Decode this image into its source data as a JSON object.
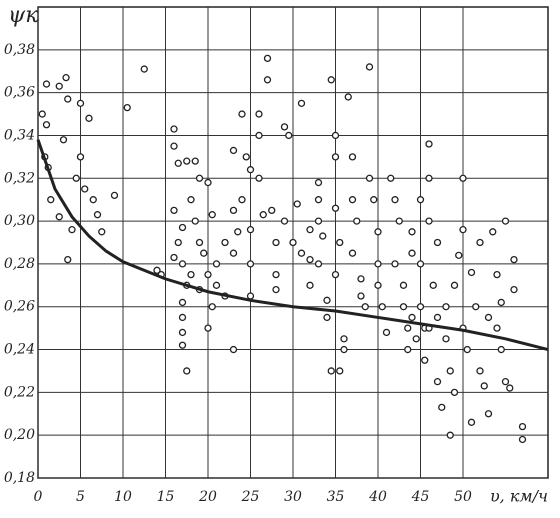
{
  "chart_data": {
    "type": "scatter",
    "x_label": "υ, км/ч",
    "y_label": "ψк",
    "xlim": [
      0,
      60
    ],
    "ylim": [
      0.18,
      0.4
    ],
    "xticks": [
      0,
      5,
      10,
      15,
      20,
      25,
      30,
      35,
      40,
      45,
      50
    ],
    "yticks": [
      {
        "value": 0.18,
        "label": "0,18"
      },
      {
        "value": 0.2,
        "label": "0,20"
      },
      {
        "value": 0.22,
        "label": "0,22"
      },
      {
        "value": 0.24,
        "label": "0,24"
      },
      {
        "value": 0.26,
        "label": "0,26"
      },
      {
        "value": 0.28,
        "label": "0,28"
      },
      {
        "value": 0.3,
        "label": "0,30"
      },
      {
        "value": 0.32,
        "label": "0,32"
      },
      {
        "value": 0.34,
        "label": "0,34"
      },
      {
        "value": 0.36,
        "label": "0,36"
      },
      {
        "value": 0.38,
        "label": "0,38"
      }
    ],
    "grid": true,
    "series": [
      {
        "type": "scatter",
        "color": "#222",
        "x": [
          0.5,
          1,
          0.8,
          1.2,
          1,
          2.5,
          3.3,
          3.5,
          3,
          1.5,
          2.5,
          3.5,
          4,
          4.5,
          5,
          5,
          6,
          5.5,
          6.5,
          7,
          7.5,
          9,
          10.5,
          12.5,
          14,
          14.5,
          16,
          16,
          16.5,
          17.5,
          16,
          16.5,
          16,
          17,
          17,
          17.5,
          17,
          17,
          17,
          17,
          17.5,
          18,
          18.5,
          19,
          18.5,
          19,
          19.5,
          18,
          19,
          20,
          20,
          20.5,
          21,
          21,
          20.5,
          20,
          22,
          22,
          23,
          23,
          23.5,
          23,
          23,
          24,
          24.5,
          24,
          25,
          25,
          25,
          25,
          26,
          26,
          26,
          26.5,
          27,
          27,
          27.5,
          28,
          28,
          28,
          29,
          29.5,
          29,
          30,
          30.5,
          31,
          31,
          32,
          32,
          32,
          33,
          33,
          33,
          33.5,
          33,
          34,
          34,
          34.5,
          35,
          35,
          35,
          35.5,
          35,
          34.5,
          35.5,
          36,
          36,
          36.5,
          37,
          37,
          37.5,
          37,
          38,
          38,
          38.5,
          39,
          39,
          39.5,
          40,
          40,
          40,
          40.5,
          41,
          41.5,
          42,
          42.5,
          42,
          43,
          43,
          43.5,
          43.5,
          44,
          44,
          44.5,
          45,
          45,
          45,
          45.5,
          45.5,
          46,
          46,
          46,
          46.5,
          47,
          47,
          47,
          47.5,
          48,
          48,
          48.5,
          48.5,
          49,
          49,
          49.5,
          50,
          50,
          50,
          50.5,
          51,
          51,
          51.5,
          52,
          52,
          52.5,
          53,
          53,
          53.5,
          54,
          54,
          54.5,
          55,
          55,
          55.5,
          56,
          56,
          57,
          57,
          54.5,
          44,
          46
        ],
        "values": [
          0.35,
          0.345,
          0.33,
          0.325,
          0.364,
          0.363,
          0.367,
          0.357,
          0.338,
          0.31,
          0.302,
          0.282,
          0.296,
          0.32,
          0.33,
          0.355,
          0.348,
          0.315,
          0.31,
          0.303,
          0.295,
          0.312,
          0.353,
          0.371,
          0.277,
          0.275,
          0.343,
          0.335,
          0.327,
          0.328,
          0.305,
          0.29,
          0.283,
          0.297,
          0.28,
          0.27,
          0.262,
          0.255,
          0.248,
          0.242,
          0.23,
          0.31,
          0.328,
          0.32,
          0.3,
          0.29,
          0.285,
          0.275,
          0.268,
          0.275,
          0.318,
          0.303,
          0.28,
          0.27,
          0.26,
          0.25,
          0.29,
          0.265,
          0.333,
          0.305,
          0.295,
          0.285,
          0.24,
          0.35,
          0.33,
          0.31,
          0.324,
          0.296,
          0.28,
          0.265,
          0.35,
          0.34,
          0.32,
          0.303,
          0.366,
          0.376,
          0.305,
          0.29,
          0.275,
          0.268,
          0.344,
          0.34,
          0.3,
          0.29,
          0.308,
          0.355,
          0.285,
          0.296,
          0.282,
          0.27,
          0.318,
          0.31,
          0.3,
          0.293,
          0.28,
          0.263,
          0.255,
          0.366,
          0.34,
          0.33,
          0.306,
          0.29,
          0.275,
          0.23,
          0.23,
          0.24,
          0.245,
          0.358,
          0.33,
          0.31,
          0.3,
          0.285,
          0.273,
          0.265,
          0.26,
          0.372,
          0.32,
          0.31,
          0.295,
          0.28,
          0.27,
          0.26,
          0.248,
          0.32,
          0.31,
          0.3,
          0.28,
          0.27,
          0.26,
          0.25,
          0.24,
          0.285,
          0.295,
          0.245,
          0.31,
          0.28,
          0.26,
          0.25,
          0.235,
          0.336,
          0.32,
          0.3,
          0.27,
          0.29,
          0.255,
          0.225,
          0.213,
          0.26,
          0.245,
          0.23,
          0.2,
          0.22,
          0.27,
          0.284,
          0.32,
          0.296,
          0.25,
          0.24,
          0.206,
          0.276,
          0.26,
          0.29,
          0.23,
          0.223,
          0.21,
          0.255,
          0.295,
          0.275,
          0.25,
          0.24,
          0.3,
          0.225,
          0.222,
          0.282,
          0.268,
          0.204,
          0.198,
          0.262,
          0.255,
          0.25
        ]
      },
      {
        "type": "line",
        "color": "#222",
        "x": [
          0,
          2,
          4,
          6,
          8,
          10,
          15,
          20,
          25,
          30,
          35,
          40,
          45,
          50,
          55,
          60
        ],
        "values": [
          0.338,
          0.315,
          0.302,
          0.293,
          0.286,
          0.281,
          0.273,
          0.267,
          0.263,
          0.26,
          0.258,
          0.255,
          0.252,
          0.249,
          0.245,
          0.24
        ]
      }
    ]
  }
}
